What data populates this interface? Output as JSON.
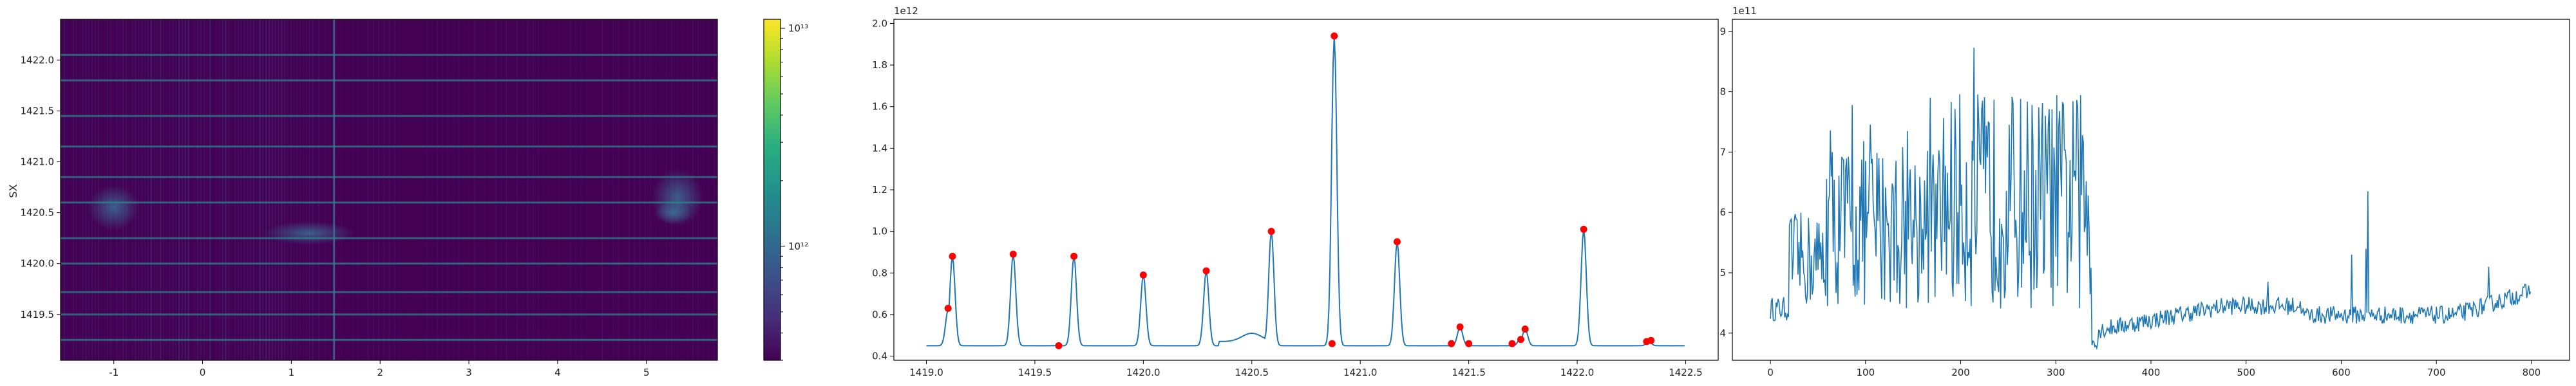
{
  "chart_data": [
    {
      "type": "heatmap",
      "ylabel": "SX",
      "xlim": [
        -1.6,
        5.8
      ],
      "ylim": [
        1419.05,
        1422.4
      ],
      "x_ticks": [
        "-1",
        "0",
        "1",
        "2",
        "3",
        "4",
        "5"
      ],
      "y_ticks": [
        "1419.5",
        "1420.0",
        "1420.5",
        "1421.0",
        "1421.5",
        "1422.0"
      ],
      "bright_rows_sx": [
        1419.25,
        1419.5,
        1419.72,
        1420.0,
        1420.25,
        1420.6,
        1420.85,
        1421.15,
        1421.45,
        1421.8,
        1422.05
      ],
      "colormap": "viridis",
      "colorbar": {
        "scale": "log",
        "tick_labels": [
          "10^12",
          "10^13"
        ],
        "range": [
          300000000000.0,
          11000000000000.0
        ]
      },
      "colors": {
        "low": "#440154",
        "high": "#fde725"
      }
    },
    {
      "type": "line",
      "xlim": [
        1418.85,
        1422.65
      ],
      "ylim": [
        0.38,
        2.02
      ],
      "offset_text": "1e12",
      "x_ticks": [
        "1419.0",
        "1419.5",
        "1420.0",
        "1420.5",
        "1421.0",
        "1421.5",
        "1422.0",
        "1422.5"
      ],
      "y_ticks": [
        "0.4",
        "0.6",
        "0.8",
        "1.0",
        "1.2",
        "1.4",
        "1.6",
        "1.8",
        "2.0"
      ],
      "baseline": 0.45,
      "peaks_line": [
        [
          1419.1,
          0.62
        ],
        [
          1419.12,
          0.88
        ],
        [
          1419.4,
          0.89
        ],
        [
          1419.68,
          0.88
        ],
        [
          1420.0,
          0.79
        ],
        [
          1420.29,
          0.81
        ],
        [
          1420.59,
          1.0
        ],
        [
          1420.88,
          1.94
        ],
        [
          1421.17,
          0.95
        ],
        [
          1421.46,
          0.54
        ],
        [
          1421.74,
          0.49
        ],
        [
          1421.76,
          0.53
        ],
        [
          1422.03,
          1.01
        ],
        [
          1422.33,
          0.47
        ]
      ],
      "peak_markers": {
        "x": [
          1419.1,
          1419.12,
          1419.4,
          1419.61,
          1419.68,
          1420.0,
          1420.29,
          1420.59,
          1420.87,
          1420.88,
          1421.17,
          1421.42,
          1421.46,
          1421.5,
          1421.7,
          1421.74,
          1421.76,
          1422.03,
          1422.32,
          1422.34
        ],
        "y": [
          0.63,
          0.88,
          0.89,
          0.45,
          0.88,
          0.79,
          0.81,
          1.0,
          0.46,
          1.94,
          0.95,
          0.46,
          0.54,
          0.46,
          0.46,
          0.48,
          0.53,
          1.01,
          0.47,
          0.475
        ]
      },
      "colors": {
        "line": "#1f77b4",
        "marker": "#ff0000"
      }
    },
    {
      "type": "line",
      "xlim": [
        -40,
        840
      ],
      "ylim": [
        3.55,
        9.2
      ],
      "offset_text": "1e11",
      "x_ticks": [
        "0",
        "100",
        "200",
        "300",
        "400",
        "500",
        "600",
        "700",
        "800"
      ],
      "y_ticks": [
        "4",
        "5",
        "6",
        "7",
        "8",
        "9"
      ],
      "n_points": 800,
      "transition_index": 338,
      "colors": {
        "line": "#1f77b4"
      }
    }
  ]
}
